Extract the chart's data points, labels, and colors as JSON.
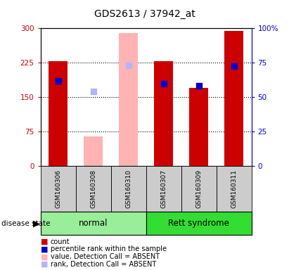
{
  "title": "GDS2613 / 37942_at",
  "samples": [
    "GSM160306",
    "GSM160308",
    "GSM160310",
    "GSM160307",
    "GSM160309",
    "GSM160311"
  ],
  "red_bars": [
    228,
    null,
    null,
    228,
    170,
    295
  ],
  "blue_squares": [
    185,
    null,
    null,
    180,
    175,
    218
  ],
  "pink_bars": [
    null,
    65,
    290,
    null,
    null,
    null
  ],
  "light_blue_squares": [
    null,
    163,
    220,
    null,
    null,
    null
  ],
  "left_ylim": [
    0,
    300
  ],
  "right_ylim": [
    0,
    100
  ],
  "left_yticks": [
    0,
    75,
    150,
    225,
    300
  ],
  "right_yticks": [
    0,
    25,
    50,
    75,
    100
  ],
  "left_yticklabels": [
    "0",
    "75",
    "150",
    "225",
    "300"
  ],
  "right_yticklabels": [
    "0",
    "25",
    "50",
    "75",
    "100%"
  ],
  "red_color": "#cc0000",
  "blue_color": "#0000cc",
  "pink_color": "#ffb3b3",
  "light_blue_color": "#b3b3ff",
  "normal_group_color": "#99ee99",
  "rett_group_color": "#33dd33",
  "bar_bg_color": "#cccccc",
  "bar_width": 0.55,
  "square_size": 35,
  "grid_dotted_ticks": [
    75,
    150,
    225
  ],
  "legend_items": [
    {
      "label": "count",
      "color": "#cc0000"
    },
    {
      "label": "percentile rank within the sample",
      "color": "#0000cc"
    },
    {
      "label": "value, Detection Call = ABSENT",
      "color": "#ffb3b3"
    },
    {
      "label": "rank, Detection Call = ABSENT",
      "color": "#b3b3ff"
    }
  ],
  "fig_width": 4.11,
  "fig_height": 3.84,
  "dpi": 100
}
